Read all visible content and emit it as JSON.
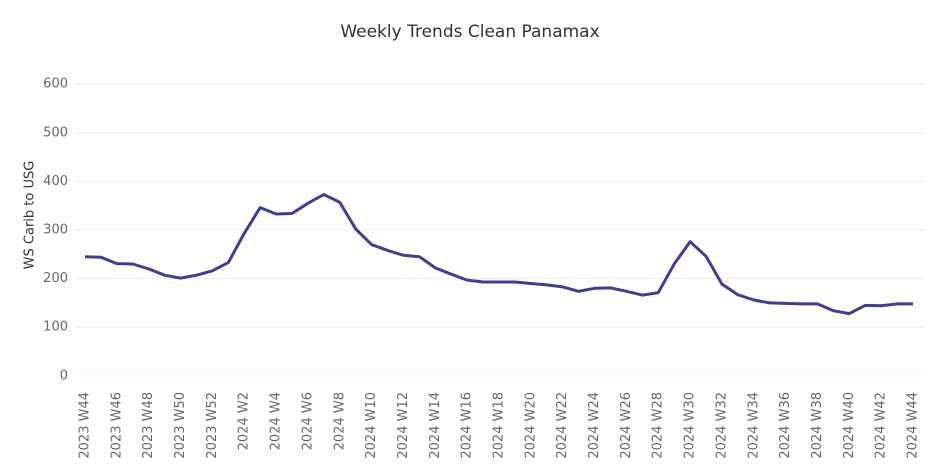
{
  "chart_data": {
    "type": "line",
    "title": "Weekly Trends Clean Panamax",
    "y_label": "WS Carib to USG",
    "categories": [
      "2023 W44",
      null,
      "2023 W46",
      null,
      "2023 W48",
      null,
      "2023 W50",
      null,
      "2023 W52",
      null,
      "2024 W2",
      null,
      "2024 W4",
      null,
      "2024 W6",
      null,
      "2024 W8",
      null,
      "2024 W10",
      null,
      "2024 W12",
      null,
      "2024 W14",
      null,
      "2024 W16",
      null,
      "2024 W18",
      null,
      "2024 W20",
      null,
      "2024 W22",
      null,
      "2024 W24",
      null,
      "2024 W26",
      null,
      "2024 W28",
      null,
      "2024 W30",
      null,
      "2024 W32",
      null,
      "2024 W34",
      null,
      "2024 W36",
      null,
      "2024 W38",
      null,
      "2024 W40",
      null,
      "2024 W42",
      null,
      "2024 W44"
    ],
    "values": [
      245,
      244,
      231,
      230,
      220,
      207,
      201,
      207,
      216,
      233,
      293,
      346,
      333,
      334,
      355,
      373,
      357,
      302,
      270,
      258,
      248,
      245,
      222,
      209,
      197,
      193,
      193,
      193,
      190,
      187,
      183,
      174,
      180,
      181,
      174,
      166,
      171,
      230,
      276,
      246,
      189,
      167,
      156,
      150,
      149,
      148,
      148,
      134,
      128,
      145,
      144,
      148,
      148
    ],
    "color": "#3f3d99",
    "ylim": [
      -25,
      660
    ],
    "yticks": [
      0,
      100,
      200,
      300,
      400,
      500,
      600
    ],
    "grid": true
  }
}
